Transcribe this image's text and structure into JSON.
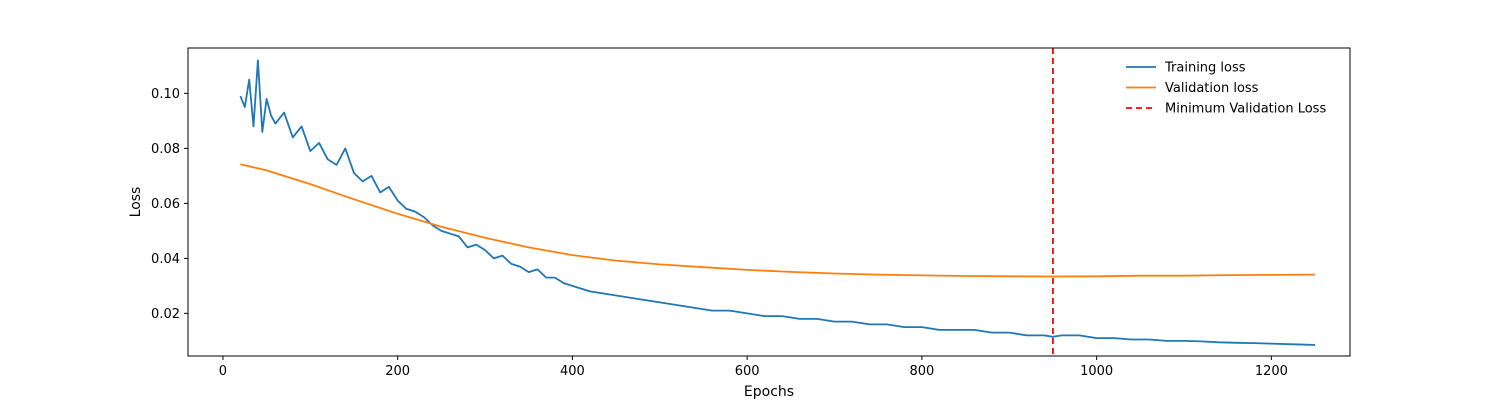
{
  "chart_data": {
    "type": "line",
    "title": "",
    "xlabel": "Epochs",
    "ylabel": "Loss",
    "xlim": [
      -40,
      1290
    ],
    "ylim": [
      0.0045,
      0.1165
    ],
    "xticks": [
      0,
      200,
      400,
      600,
      800,
      1000,
      1200
    ],
    "xtick_labels": [
      "0",
      "200",
      "400",
      "600",
      "800",
      "1000",
      "1200"
    ],
    "yticks": [
      0.02,
      0.04,
      0.06,
      0.08,
      0.1
    ],
    "ytick_labels": [
      "0.02",
      "0.04",
      "0.06",
      "0.08",
      "0.10"
    ],
    "grid": false,
    "legend_position": "top-right",
    "series": [
      {
        "name": "Training loss",
        "color": "#1f77b4",
        "style": "solid",
        "x": [
          20,
          25,
          30,
          35,
          40,
          45,
          50,
          55,
          60,
          70,
          80,
          90,
          100,
          110,
          120,
          130,
          140,
          150,
          160,
          170,
          180,
          190,
          200,
          210,
          220,
          230,
          240,
          250,
          260,
          270,
          280,
          290,
          300,
          310,
          320,
          330,
          340,
          350,
          360,
          370,
          380,
          390,
          400,
          420,
          440,
          460,
          480,
          500,
          520,
          540,
          560,
          580,
          600,
          620,
          640,
          660,
          680,
          700,
          720,
          740,
          760,
          780,
          800,
          820,
          840,
          860,
          880,
          900,
          920,
          940,
          950,
          960,
          980,
          1000,
          1020,
          1040,
          1060,
          1080,
          1100,
          1120,
          1140,
          1160,
          1180,
          1200,
          1220,
          1240,
          1250
        ],
        "y": [
          0.099,
          0.095,
          0.105,
          0.088,
          0.112,
          0.086,
          0.098,
          0.092,
          0.089,
          0.093,
          0.084,
          0.088,
          0.079,
          0.082,
          0.076,
          0.074,
          0.08,
          0.071,
          0.068,
          0.07,
          0.064,
          0.066,
          0.061,
          0.058,
          0.057,
          0.055,
          0.052,
          0.05,
          0.049,
          0.048,
          0.044,
          0.045,
          0.043,
          0.04,
          0.041,
          0.038,
          0.037,
          0.035,
          0.036,
          0.033,
          0.033,
          0.031,
          0.03,
          0.028,
          0.027,
          0.026,
          0.025,
          0.024,
          0.023,
          0.022,
          0.021,
          0.021,
          0.02,
          0.019,
          0.019,
          0.018,
          0.018,
          0.017,
          0.017,
          0.016,
          0.016,
          0.015,
          0.015,
          0.014,
          0.014,
          0.014,
          0.013,
          0.013,
          0.012,
          0.012,
          0.0115,
          0.012,
          0.012,
          0.011,
          0.011,
          0.0105,
          0.0105,
          0.01,
          0.01,
          0.0098,
          0.0095,
          0.0093,
          0.0092,
          0.009,
          0.0088,
          0.0086,
          0.0085
        ]
      },
      {
        "name": "Validation loss",
        "color": "#ff7f0e",
        "style": "solid",
        "x": [
          20,
          50,
          100,
          150,
          200,
          250,
          300,
          350,
          400,
          450,
          500,
          550,
          600,
          650,
          700,
          750,
          800,
          850,
          900,
          950,
          1000,
          1050,
          1100,
          1150,
          1200,
          1250
        ],
        "y": [
          0.0742,
          0.072,
          0.067,
          0.0615,
          0.0562,
          0.0515,
          0.0475,
          0.044,
          0.0412,
          0.0392,
          0.0378,
          0.0368,
          0.0358,
          0.0351,
          0.0345,
          0.0341,
          0.0338,
          0.0336,
          0.0335,
          0.0334,
          0.0335,
          0.0337,
          0.0337,
          0.0339,
          0.034,
          0.0341
        ]
      }
    ],
    "vlines": [
      {
        "name": "Minimum Validation Loss",
        "x": 950,
        "color": "#ff0000",
        "style": "dashed"
      }
    ]
  }
}
